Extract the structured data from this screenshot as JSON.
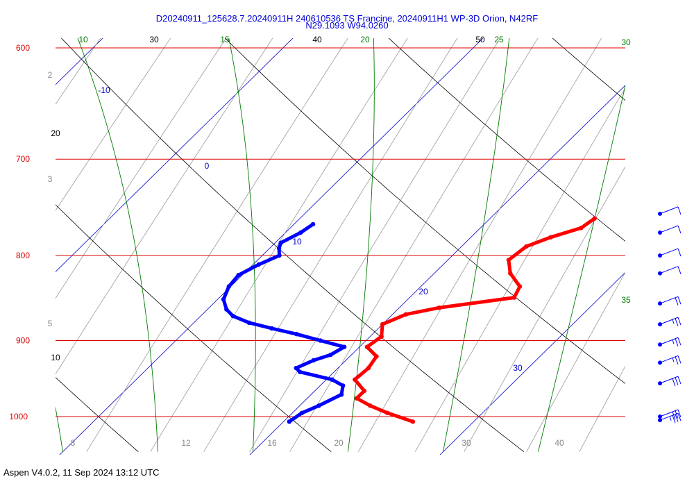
{
  "header": {
    "line1": "D20240911_125628.7.20240911H 240610536 TS Francine, 20240911H1 WP-3D Orion, N42RF",
    "line2": "N29.1093 W94.0260"
  },
  "footer": {
    "text": "Aspen V4.0.2, 11 Sep 2024  13:12 UTC"
  },
  "colors": {
    "temperature": "#ff0000",
    "dewpoint": "#0000ff",
    "isobar": "#dd0000",
    "isotherm": "#0000c8",
    "dry_adiabat": "#000000",
    "moist_adiabat": "#007a00",
    "mixing_ratio": "#999999",
    "wind_barb": "#0000ff"
  },
  "chart_data": {
    "type": "skew-t log-p",
    "pressure_range_hpa": [
      1000,
      600
    ],
    "isobars": [
      "600",
      "700",
      "800",
      "900",
      "1000"
    ],
    "isotherms": [
      {
        "label": "-10",
        "value": -10
      },
      {
        "label": "0",
        "value": 0
      },
      {
        "label": "10",
        "value": 10
      },
      {
        "label": "20",
        "value": 20
      },
      {
        "label": "30",
        "value": 30
      }
    ],
    "dry_adiabats": [
      "10",
      "20",
      "30",
      "40",
      "50"
    ],
    "moist_adiabats": [
      "10",
      "15",
      "20",
      "25",
      "30",
      "35"
    ],
    "mixing_ratio_left": [
      "2",
      "3",
      "5"
    ],
    "mixing_ratio_bottom": [
      "8",
      "12",
      "16",
      "20",
      "30",
      "40"
    ],
    "temperature_profile": {
      "name": "Temperature",
      "pressure": [
        1007,
        995,
        985,
        975,
        965,
        950,
        935,
        920,
        908,
        895,
        880,
        868,
        860,
        848,
        835,
        820,
        805,
        790,
        780,
        770,
        760
      ],
      "value": [
        26.8,
        25.0,
        23.7,
        22.6,
        22.6,
        21.5,
        21.6,
        21.4,
        20.4,
        20.6,
        20.0,
        20.7,
        22.1,
        25.5,
        25.2,
        24.0,
        23.2,
        23.4,
        24.2,
        25.3,
        25.5
      ]
    },
    "dewpoint_profile": {
      "name": "Dewpoint",
      "pressure": [
        1007,
        995,
        985,
        970,
        958,
        950,
        940,
        935,
        925,
        918,
        908,
        900,
        892,
        885,
        878,
        870,
        862,
        850,
        835,
        822,
        810,
        800,
        792,
        786,
        775,
        766
      ],
      "value": [
        20.3,
        20.5,
        21.0,
        21.6,
        21.2,
        20.3,
        18.2,
        17.8,
        18.3,
        18.9,
        19.2,
        17.6,
        16.0,
        14.4,
        12.9,
        11.7,
        11.0,
        10.3,
        9.9,
        9.8,
        10.3,
        10.9,
        10.5,
        10.3,
        10.8,
        11.0
      ]
    },
    "wind_barbs": [
      {
        "pressure": 1005,
        "speed_kt": 35
      },
      {
        "pressure": 1000,
        "speed_kt": 30
      },
      {
        "pressure": 955,
        "speed_kt": 30
      },
      {
        "pressure": 928,
        "speed_kt": 25
      },
      {
        "pressure": 905,
        "speed_kt": 25
      },
      {
        "pressure": 880,
        "speed_kt": 25
      },
      {
        "pressure": 855,
        "speed_kt": 20
      },
      {
        "pressure": 820,
        "speed_kt": 10
      },
      {
        "pressure": 800,
        "speed_kt": 10
      },
      {
        "pressure": 775,
        "speed_kt": 10
      },
      {
        "pressure": 755,
        "speed_kt": 10
      }
    ]
  }
}
